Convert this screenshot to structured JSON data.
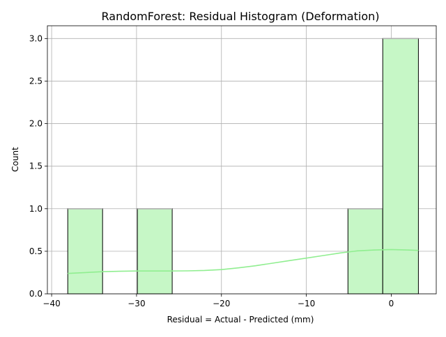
{
  "chart_data": {
    "type": "bar",
    "title": "RandomForest: Residual Histogram (Deformation)",
    "xlabel": "Residual = Actual - Predicted (mm)",
    "ylabel": "Count",
    "xlim": [
      -40.5,
      5.3
    ],
    "ylim": [
      0,
      3.15
    ],
    "xticks": [
      -40,
      -30,
      -20,
      -10,
      0
    ],
    "xtick_labels": [
      "−40",
      "−30",
      "−20",
      "−10",
      "0"
    ],
    "yticks": [
      0.0,
      0.5,
      1.0,
      1.5,
      2.0,
      2.5,
      3.0
    ],
    "ytick_labels": [
      "0.0",
      "0.5",
      "1.0",
      "1.5",
      "2.0",
      "2.5",
      "3.0"
    ],
    "grid": true,
    "bins": [
      {
        "x0": -38.1,
        "x1": -34.0,
        "count": 1
      },
      {
        "x0": -29.9,
        "x1": -25.8,
        "count": 1
      },
      {
        "x0": -5.1,
        "x1": -1.0,
        "count": 1
      },
      {
        "x0": -1.0,
        "x1": 3.2,
        "count": 3
      }
    ],
    "kde": {
      "x": [
        -38.1,
        -36,
        -34,
        -32,
        -30,
        -28,
        -26,
        -24,
        -22,
        -20,
        -18,
        -16,
        -14,
        -12,
        -10,
        -8,
        -6,
        -4,
        -2,
        0,
        2,
        3.2
      ],
      "y": [
        0.24,
        0.25,
        0.26,
        0.265,
        0.268,
        0.268,
        0.268,
        0.27,
        0.275,
        0.285,
        0.305,
        0.33,
        0.36,
        0.39,
        0.42,
        0.45,
        0.48,
        0.505,
        0.515,
        0.52,
        0.515,
        0.51
      ]
    },
    "colors": {
      "bar_fill": "#c6f7c6",
      "bar_edge": "#000000",
      "kde_line": "#90ee90"
    }
  }
}
